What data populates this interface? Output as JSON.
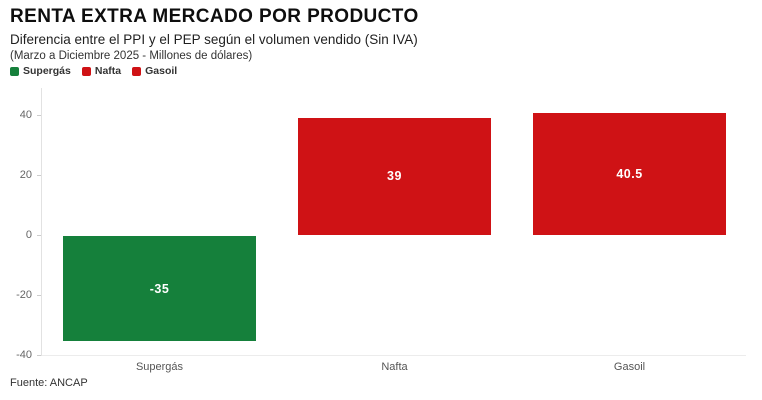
{
  "header": {
    "title": "RENTA EXTRA MERCADO POR PRODUCTO",
    "subtitle": "Diferencia entre el PPI y el PEP según el volumen vendido (Sin IVA)",
    "subtitle2": "(Marzo a Diciembre 2025 - Millones de dólares)"
  },
  "legend": [
    {
      "label": "Supergás",
      "color": "#15803b"
    },
    {
      "label": "Nafta",
      "color": "#cf1215"
    },
    {
      "label": "Gasoil",
      "color": "#cf1215"
    }
  ],
  "chart_data": {
    "type": "bar",
    "title": "RENTA EXTRA MERCADO POR PRODUCTO",
    "subtitle": "Diferencia entre el PPI y el PEP según el volumen vendido (Sin IVA)",
    "units_note": "(Marzo a Diciembre 2025 - Millones de dólares)",
    "categories": [
      "Supergás",
      "Nafta",
      "Gasoil"
    ],
    "values": [
      -35,
      39,
      40.5
    ],
    "value_labels": [
      "-35",
      "39",
      "40.5"
    ],
    "bar_colors": [
      "#15803b",
      "#cf1215",
      "#cf1215"
    ],
    "xlabel": "",
    "ylabel": "",
    "ylim": [
      -40,
      48
    ],
    "yticks": [
      40,
      20,
      0,
      -20,
      -40
    ],
    "grid": false,
    "legend_position": "top-left",
    "value_label_color": "#ffffff"
  },
  "footer": {
    "source": "Fuente: ANCAP"
  }
}
